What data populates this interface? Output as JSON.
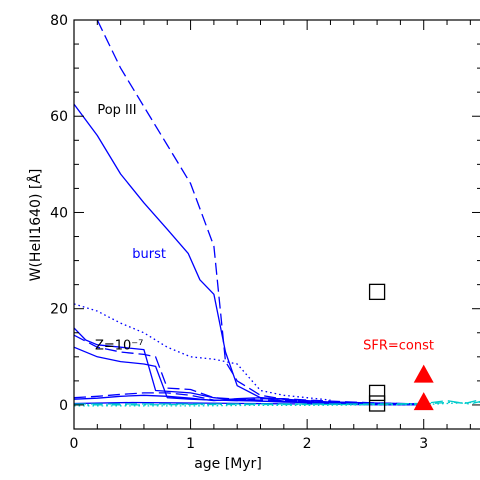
{
  "chart_data": {
    "type": "line",
    "xlabel": "age [Myr]",
    "ylabel": "W(HeII1640) [Å]",
    "xlim": [
      0,
      3.5
    ],
    "ylim": [
      -5,
      80
    ],
    "x_ticks": [
      "0",
      "1",
      "2",
      "3"
    ],
    "y_ticks": [
      "0",
      "20",
      "40",
      "60",
      "80"
    ],
    "grid": false,
    "annotations": [
      {
        "text": "Pop III",
        "x": 0.2,
        "y": 60.5,
        "color": "#000000"
      },
      {
        "text": "burst",
        "x": 0.5,
        "y": 30.5,
        "color": "#0000ff"
      },
      {
        "text": "Z=10⁻⁷",
        "x": 0.18,
        "y": 11.5,
        "color": "#000000"
      },
      {
        "text": "SFR=const",
        "x": 2.48,
        "y": 11.5,
        "color": "#ff0000"
      }
    ],
    "series": [
      {
        "style": "solid",
        "color": "#0000ff",
        "x": [
          0,
          0.2,
          0.4,
          0.6,
          0.8,
          0.98,
          1.08,
          1.2,
          1.3,
          1.4,
          1.6,
          1.8,
          2.0,
          2.2,
          2.4,
          2.6,
          2.8,
          3.0
        ],
        "y": [
          62.5,
          56,
          48,
          42,
          36.5,
          31.5,
          26,
          23,
          11,
          4,
          1.5,
          0.8,
          0.4,
          0.2,
          0.1,
          0.05,
          0,
          0
        ]
      },
      {
        "style": "dashed",
        "color": "#0000ff",
        "x": [
          0.2,
          0.4,
          0.6,
          0.8,
          1.0,
          1.2,
          1.3,
          1.4,
          1.6,
          1.8,
          2.0,
          2.2,
          2.4,
          2.6,
          2.8,
          3.0
        ],
        "y": [
          80,
          70,
          62,
          54,
          46,
          33,
          9,
          5,
          2,
          1.2,
          0.6,
          0.3,
          0.15,
          0.1,
          0.05,
          0
        ]
      },
      {
        "style": "dotted",
        "color": "#0000ff",
        "x": [
          0,
          0.2,
          0.4,
          0.6,
          0.8,
          1.0,
          1.2,
          1.4,
          1.6,
          1.8,
          2.0,
          2.2
        ],
        "y": [
          21,
          19.5,
          17,
          15,
          12,
          10,
          9.5,
          8.5,
          3,
          2,
          1.5,
          1
        ]
      },
      {
        "style": "solid",
        "color": "#0000ff",
        "x": [
          0,
          0.1,
          0.2,
          0.4,
          0.6,
          0.7,
          1.0,
          1.2,
          1.4,
          1.6,
          1.8,
          2.0,
          2.2,
          2.4,
          2.6,
          2.8,
          3.0
        ],
        "y": [
          16,
          13.5,
          12.5,
          12,
          11.5,
          3,
          2.5,
          1.5,
          1.0,
          0.8,
          0.6,
          0.5,
          0.4,
          0.3,
          0.2,
          0.1,
          0
        ]
      },
      {
        "style": "dashed",
        "color": "#0000ff",
        "x": [
          0,
          0.2,
          0.4,
          0.6,
          0.7,
          0.8,
          1.0,
          1.2,
          1.4,
          1.6,
          1.8,
          2.0,
          2.2,
          2.4,
          2.6,
          2.8,
          3.0
        ],
        "y": [
          14.5,
          12,
          11,
          10.5,
          10,
          3.5,
          3.2,
          1.5,
          1.2,
          1.0,
          0.9,
          0.8,
          0.6,
          0.5,
          0.3,
          0.2,
          0
        ]
      },
      {
        "style": "solid",
        "color": "#0000ff",
        "x": [
          0,
          0.2,
          0.4,
          0.6,
          0.7,
          0.8,
          1.0,
          1.2,
          1.4,
          1.6,
          1.8,
          2.0,
          2.2,
          2.4,
          2.6,
          2.8,
          3.0
        ],
        "y": [
          12,
          10,
          9,
          8.5,
          8,
          1.5,
          1.2,
          1.0,
          0.9,
          0.8,
          0.7,
          0.6,
          0.5,
          0.4,
          0.3,
          0.2,
          0
        ]
      },
      {
        "style": "dashed",
        "color": "#0000ff",
        "x": [
          0,
          0.2,
          0.4,
          0.6,
          0.8,
          1.0,
          1.2,
          1.4,
          1.6,
          1.8,
          2.0,
          2.2,
          2.4,
          2.6,
          2.8,
          3.0
        ],
        "y": [
          1.5,
          1.8,
          2.2,
          2.5,
          2.5,
          2.0,
          1.0,
          0.9,
          1.3,
          1.3,
          1.0,
          0.8,
          0.6,
          0.4,
          0.3,
          0.2
        ]
      },
      {
        "style": "solid",
        "color": "#0000ff",
        "x": [
          0,
          0.2,
          0.4,
          0.6,
          0.8,
          1.0,
          1.2,
          1.4,
          1.6,
          1.8,
          2.0,
          2.2,
          2.4,
          2.6,
          2.8,
          3.0
        ],
        "y": [
          1.2,
          1.4,
          1.8,
          2.0,
          1.8,
          1.4,
          0.9,
          1.3,
          1.5,
          1.2,
          0.9,
          0.6,
          0.5,
          0.4,
          0.3,
          0.2
        ]
      },
      {
        "style": "solid",
        "color": "#0000ff",
        "x": [
          0,
          0.5,
          1.0,
          1.5,
          2.0,
          2.5,
          3.0
        ],
        "y": [
          0.3,
          0.5,
          0.4,
          0.3,
          0.2,
          0.1,
          0.05
        ]
      },
      {
        "style": "dashed",
        "color": "#00cccc",
        "x": [
          0,
          0.5,
          1.0,
          1.5,
          2.0,
          2.5,
          3.0,
          3.2,
          3.35,
          3.5
        ],
        "y": [
          0.2,
          0.2,
          0.2,
          0.2,
          0.2,
          0.2,
          0.3,
          0.9,
          0.3,
          1.2
        ]
      },
      {
        "style": "dashdot",
        "color": "#00cccc",
        "x": [
          0,
          0.5,
          1.0,
          1.5,
          2.0,
          2.5,
          3.0,
          3.25,
          3.4,
          3.5
        ],
        "y": [
          0.0,
          0.0,
          0.1,
          0.1,
          0.1,
          0.1,
          0.2,
          0.6,
          0.2,
          0.8
        ]
      },
      {
        "style": "dotted",
        "color": "#00cccc",
        "x": [
          0,
          0.5,
          1.0,
          1.5,
          2.0,
          2.5,
          3.0,
          3.3,
          3.5
        ],
        "y": [
          -0.2,
          -0.2,
          -0.2,
          -0.1,
          -0.1,
          0.0,
          0.1,
          0.4,
          0.6
        ]
      }
    ],
    "markers": [
      {
        "shape": "open-square",
        "color": "#000000",
        "x": 2.6,
        "y": 23.5
      },
      {
        "shape": "open-square",
        "color": "#000000",
        "x": 2.6,
        "y": 2.5
      },
      {
        "shape": "open-square",
        "color": "#000000",
        "x": 2.6,
        "y": 0.3
      },
      {
        "shape": "filled-triangle",
        "color": "#ff0000",
        "x": 3.0,
        "y": 6.5
      },
      {
        "shape": "filled-triangle",
        "color": "#ff0000",
        "x": 3.0,
        "y": 0.8
      }
    ]
  }
}
